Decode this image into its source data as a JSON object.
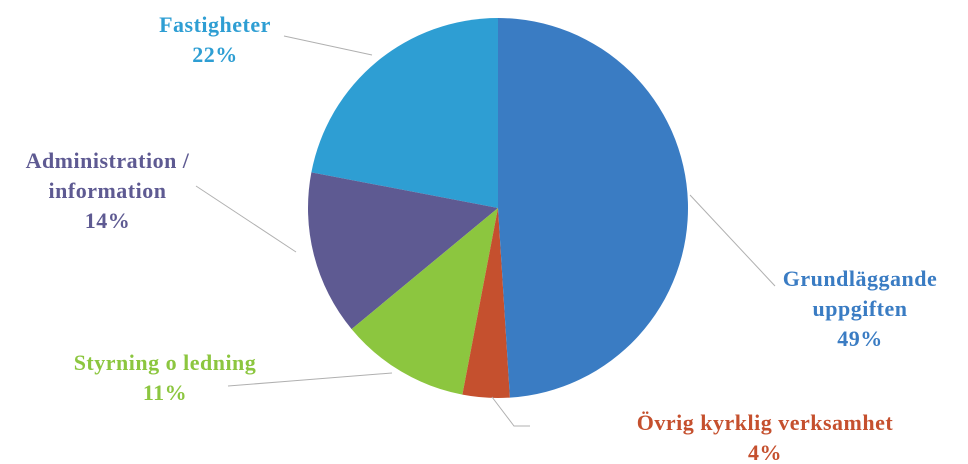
{
  "chart_data": {
    "type": "pie",
    "categories": [
      "Grundläggande uppgiften",
      "Övrig kyrklig verksamhet",
      "Styrning o ledning",
      "Administration / information",
      "Fastigheter"
    ],
    "values": [
      49,
      4,
      11,
      14,
      22
    ],
    "value_labels": [
      "49%",
      "4%",
      "11%",
      "14%",
      "22%"
    ],
    "colors": [
      "#3a7cc3",
      "#c5502e",
      "#8cc63f",
      "#5e5a92",
      "#2e9ed3"
    ]
  }
}
